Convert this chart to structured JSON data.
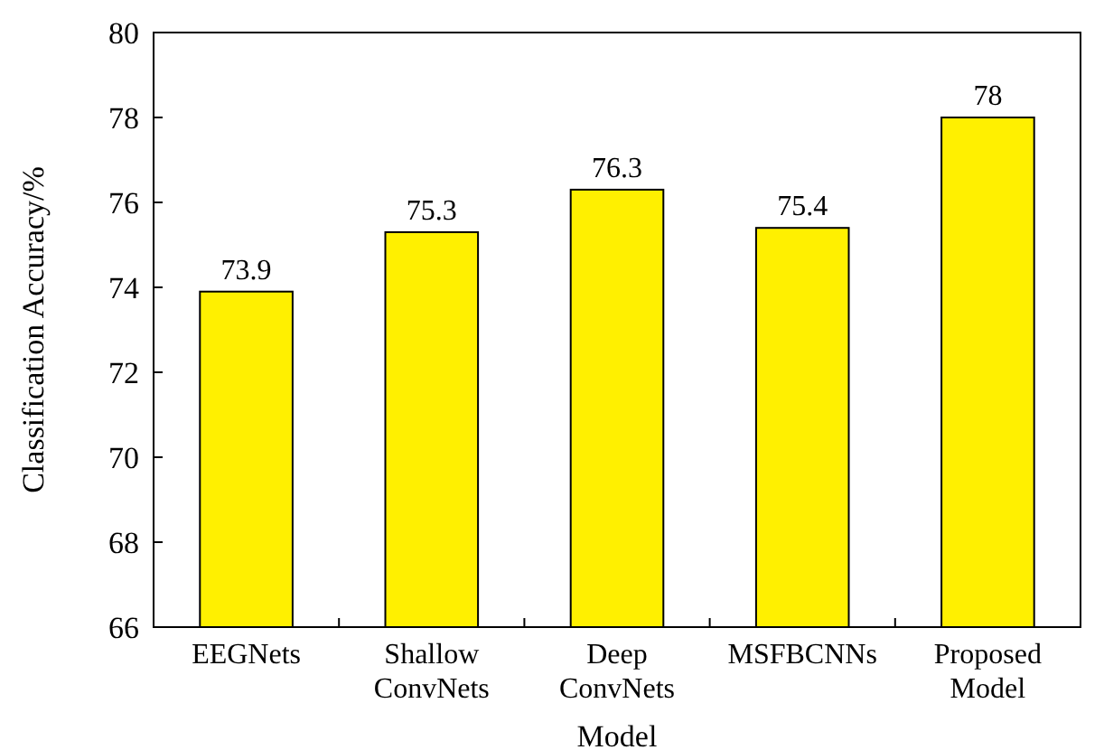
{
  "chart_data": {
    "type": "bar",
    "xlabel": "Model",
    "ylabel": "Classification Accuracy/%",
    "categories": [
      "EEGNets",
      "Shallow\nConvNets",
      "Deep\nConvNets",
      "MSFBCNNs",
      "Proposed\nModel"
    ],
    "values": [
      73.9,
      75.3,
      76.3,
      75.4,
      78
    ],
    "color": "#fff000",
    "ylim": [
      66,
      80
    ],
    "yticks": [
      66,
      68,
      70,
      72,
      74,
      76,
      78,
      80
    ],
    "grid": false,
    "data_labels": true
  }
}
